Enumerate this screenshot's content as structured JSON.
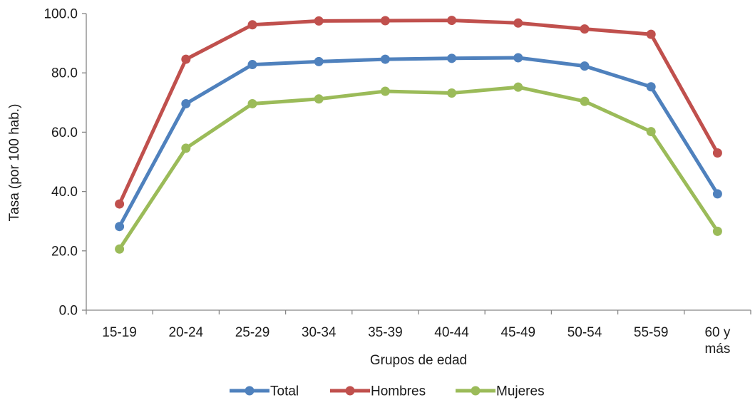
{
  "chart_data": {
    "type": "line",
    "title": "",
    "xlabel": "Grupos de edad",
    "ylabel": "Tasa (por 100 hab.)",
    "ylim": [
      0,
      100
    ],
    "yticks": [
      "0.0",
      "20.0",
      "40.0",
      "60.0",
      "80.0",
      "100.0"
    ],
    "ytick_values": [
      0,
      20,
      40,
      60,
      80,
      100
    ],
    "grid": false,
    "legend_position": "bottom",
    "categories": [
      "15-19",
      "20-24",
      "25-29",
      "30-34",
      "35-39",
      "40-44",
      "45-49",
      "50-54",
      "55-59",
      "60 y más"
    ],
    "series": [
      {
        "name": "Total",
        "color": "#4F81BD",
        "values": [
          28.2,
          69.6,
          82.8,
          83.8,
          84.6,
          84.9,
          85.1,
          82.3,
          75.3,
          39.2
        ]
      },
      {
        "name": "Hombres",
        "color": "#C0504D",
        "values": [
          35.8,
          84.6,
          96.2,
          97.5,
          97.6,
          97.7,
          96.8,
          94.8,
          93.0,
          53.0
        ]
      },
      {
        "name": "Mujeres",
        "color": "#9BBB59",
        "values": [
          20.6,
          54.6,
          69.6,
          71.2,
          73.8,
          73.2,
          75.2,
          70.4,
          60.2,
          26.6
        ]
      }
    ]
  }
}
